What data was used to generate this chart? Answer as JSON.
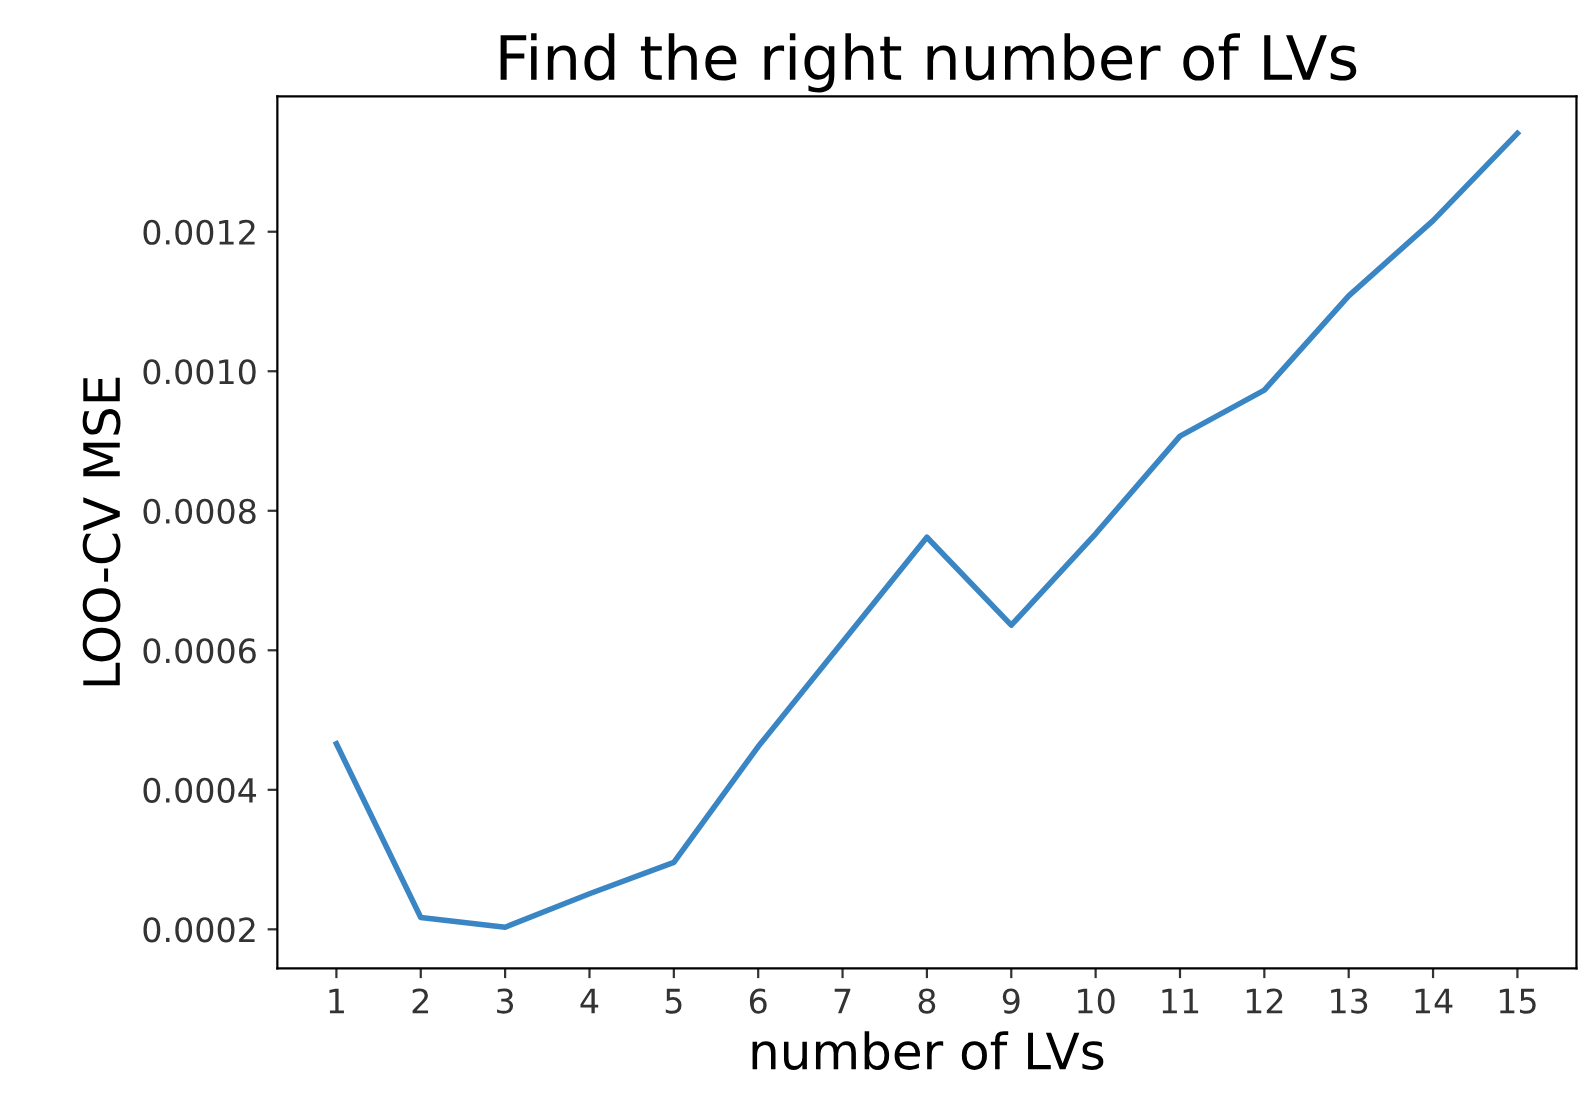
{
  "chart_data": {
    "type": "line",
    "title": "Find the right number of LVs",
    "xlabel": "number of LVs",
    "ylabel": "LOO-CV MSE",
    "x": [
      1,
      2,
      3,
      4,
      5,
      6,
      7,
      8,
      9,
      10,
      11,
      12,
      13,
      14,
      15
    ],
    "series": [
      {
        "color": "#3a86c4",
        "values": [
          0.000466,
          0.000217,
          0.000203,
          0.000251,
          0.000296,
          0.000462,
          0.000612,
          0.000762,
          0.000636,
          0.000767,
          0.000907,
          0.000973,
          0.001108,
          0.001216,
          0.001341
        ]
      }
    ],
    "xlim": [
      0.3,
      15.7
    ],
    "xticks": [
      1,
      2,
      3,
      4,
      5,
      6,
      7,
      8,
      9,
      10,
      11,
      12,
      13,
      14,
      15
    ],
    "ylim": [
      0.000144,
      0.001394
    ],
    "yticks": [
      {
        "value": 0.0002,
        "label": "0.0002"
      },
      {
        "value": 0.0004,
        "label": "0.0004"
      },
      {
        "value": 0.0006,
        "label": "0.0006"
      },
      {
        "value": 0.0008,
        "label": "0.0008"
      },
      {
        "value": 0.001,
        "label": "0.0010"
      },
      {
        "value": 0.0012,
        "label": "0.0012"
      }
    ],
    "grid": false,
    "marker": "none",
    "line_style": "solid"
  }
}
